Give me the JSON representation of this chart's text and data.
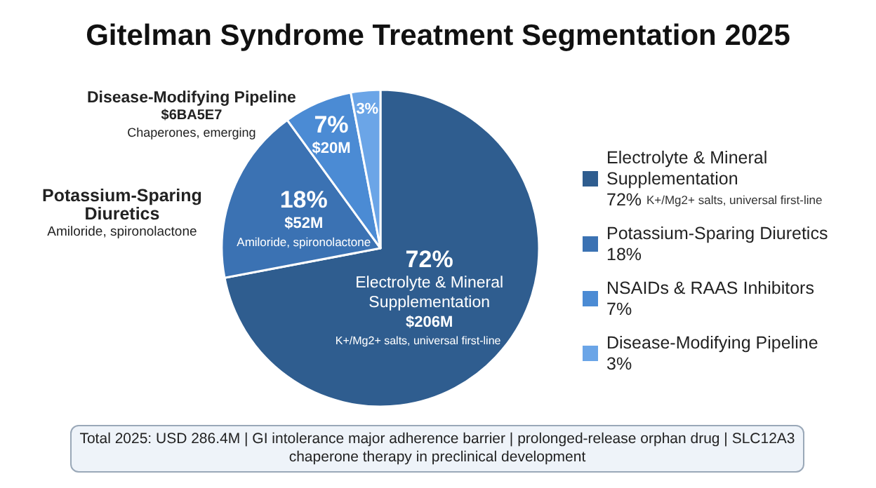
{
  "chart_data": {
    "type": "pie",
    "title": "Gitelman Syndrome Treatment Segmentation 2025",
    "categories": [
      "Electrolyte & Mineral Supplementation",
      "Potassium-Sparing Diuretics",
      "NSAIDs & RAAS Inhibitors",
      "Disease-Modifying Pipeline"
    ],
    "values": [
      72,
      18,
      7,
      3
    ],
    "colors": [
      "#2f5d8f",
      "#3b72b3",
      "#4b8bd4",
      "#6ba5e7"
    ],
    "value_labels": [
      "72%",
      "18%",
      "7%",
      "3%"
    ],
    "legend": "right",
    "annotations": [
      "$206M",
      "$52M",
      "$20M",
      "K+/Mg2+ salts, universal first-line",
      "Amiloride, spironolactone",
      "$6BA5E7",
      "Chaperones, emerging",
      "Total 2025: USD 286.4M | GI intolerance major adherence barrier | prolonged-release orphan drug | SLC12A3 chaperone therapy in preclinical development"
    ]
  }
}
